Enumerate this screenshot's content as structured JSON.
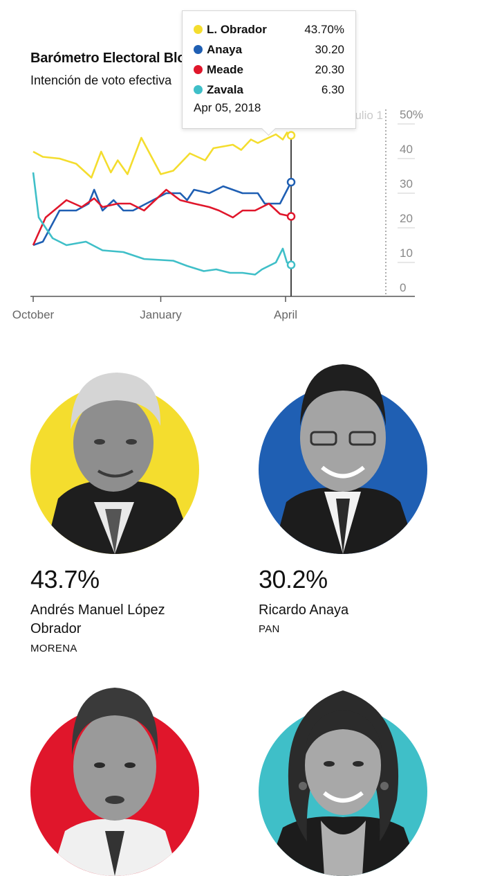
{
  "chart": {
    "title": "Barómetro Electoral Bloomberg",
    "subtitle": "Intención de voto efectiva"
  },
  "tooltip": {
    "date": "Apr 05, 2018",
    "rows": [
      {
        "name": "L. Obrador",
        "value": "43.70%",
        "color": "#F4DD2E"
      },
      {
        "name": "Anaya",
        "value": "30.20",
        "color": "#1F5FB3"
      },
      {
        "name": "Meade",
        "value": "20.30",
        "color": "#E0162B"
      },
      {
        "name": "Zavala",
        "value": "6.30",
        "color": "#3FBFC8"
      }
    ]
  },
  "chart_data": {
    "type": "line",
    "x_axis": {
      "ticks": [
        "October",
        "January",
        "April"
      ]
    },
    "y_axis": {
      "ticks": [
        "50%",
        "40",
        "30",
        "20",
        "10",
        "0"
      ],
      "ylim": [
        0,
        50
      ]
    },
    "annotation": "Eleccion julio 1",
    "grid": true,
    "highlight_date": "Apr 05, 2018",
    "series": [
      {
        "name": "L. Obrador",
        "color": "#F4DD2E",
        "points": [
          [
            "2017-10-01",
            39
          ],
          [
            "2017-10-08",
            37.5
          ],
          [
            "2017-10-20",
            37
          ],
          [
            "2017-11-01",
            35.5
          ],
          [
            "2017-11-12",
            31.5
          ],
          [
            "2017-11-19",
            39
          ],
          [
            "2017-11-26",
            33
          ],
          [
            "2017-12-01",
            36.5
          ],
          [
            "2017-12-08",
            32.5
          ],
          [
            "2017-12-18",
            43
          ],
          [
            "2018-01-01",
            32.5
          ],
          [
            "2018-01-10",
            33.5
          ],
          [
            "2018-01-22",
            38.5
          ],
          [
            "2018-02-02",
            36.5
          ],
          [
            "2018-02-08",
            40
          ],
          [
            "2018-02-22",
            41
          ],
          [
            "2018-02-28",
            39.5
          ],
          [
            "2018-03-07",
            42.5
          ],
          [
            "2018-03-12",
            41.5
          ],
          [
            "2018-03-17",
            42.5
          ],
          [
            "2018-03-25",
            44
          ],
          [
            "2018-03-30",
            42.5
          ],
          [
            "2018-04-02",
            44.5
          ],
          [
            "2018-04-05",
            43.7
          ]
        ]
      },
      {
        "name": "Anaya",
        "color": "#1F5FB3",
        "points": [
          [
            "2017-10-01",
            12
          ],
          [
            "2017-10-08",
            13
          ],
          [
            "2017-10-20",
            22
          ],
          [
            "2017-11-01",
            22
          ],
          [
            "2017-11-10",
            24
          ],
          [
            "2017-11-14",
            28
          ],
          [
            "2017-11-20",
            22
          ],
          [
            "2017-11-28",
            25
          ],
          [
            "2017-12-05",
            22
          ],
          [
            "2017-12-12",
            22
          ],
          [
            "2018-01-05",
            27
          ],
          [
            "2018-01-15",
            27
          ],
          [
            "2018-01-20",
            25
          ],
          [
            "2018-01-25",
            28
          ],
          [
            "2018-02-05",
            27
          ],
          [
            "2018-02-15",
            29
          ],
          [
            "2018-03-01",
            27
          ],
          [
            "2018-03-12",
            27
          ],
          [
            "2018-03-17",
            24
          ],
          [
            "2018-03-28",
            24
          ],
          [
            "2018-04-05",
            30.2
          ]
        ]
      },
      {
        "name": "Meade",
        "color": "#E0162B",
        "points": [
          [
            "2017-10-01",
            12
          ],
          [
            "2017-10-10",
            20
          ],
          [
            "2017-10-25",
            25
          ],
          [
            "2017-11-05",
            23
          ],
          [
            "2017-11-14",
            25.5
          ],
          [
            "2017-11-20",
            23
          ],
          [
            "2017-12-01",
            24
          ],
          [
            "2017-12-10",
            24
          ],
          [
            "2017-12-20",
            22
          ],
          [
            "2018-01-05",
            28
          ],
          [
            "2018-01-15",
            25
          ],
          [
            "2018-01-25",
            24
          ],
          [
            "2018-02-05",
            23
          ],
          [
            "2018-02-12",
            22
          ],
          [
            "2018-02-22",
            20
          ],
          [
            "2018-03-01",
            22
          ],
          [
            "2018-03-10",
            22
          ],
          [
            "2018-03-20",
            24
          ],
          [
            "2018-03-28",
            21
          ],
          [
            "2018-04-05",
            20.3
          ]
        ]
      },
      {
        "name": "Zavala",
        "color": "#3FBFC8",
        "points": [
          [
            "2017-10-01",
            33
          ],
          [
            "2017-10-05",
            20
          ],
          [
            "2017-10-15",
            14
          ],
          [
            "2017-10-25",
            12
          ],
          [
            "2017-11-08",
            13
          ],
          [
            "2017-11-20",
            10.5
          ],
          [
            "2017-12-05",
            10
          ],
          [
            "2017-12-20",
            8
          ],
          [
            "2018-01-10",
            7.5
          ],
          [
            "2018-01-20",
            6
          ],
          [
            "2018-02-01",
            4.5
          ],
          [
            "2018-02-10",
            5
          ],
          [
            "2018-02-20",
            4
          ],
          [
            "2018-03-01",
            4
          ],
          [
            "2018-03-10",
            3.5
          ],
          [
            "2018-03-15",
            5
          ],
          [
            "2018-03-25",
            7
          ],
          [
            "2018-03-30",
            11
          ],
          [
            "2018-04-02",
            7
          ],
          [
            "2018-04-05",
            6.3
          ]
        ]
      }
    ]
  },
  "candidates": [
    {
      "pct": "43.7%",
      "name": "Andrés Manuel López Obrador",
      "party": "MORENA",
      "color": "#F4DD2E",
      "portrait": "man-grey-hair-portrait"
    },
    {
      "pct": "30.2%",
      "name": "Ricardo Anaya",
      "party": "PAN",
      "color": "#1F5FB3",
      "portrait": "young-man-glasses-portrait"
    },
    {
      "name": "",
      "color": "#E0162B",
      "portrait": "man-dark-hair-portrait"
    },
    {
      "name": "",
      "color": "#3FBFC8",
      "portrait": "woman-dark-hair-portrait"
    }
  ]
}
